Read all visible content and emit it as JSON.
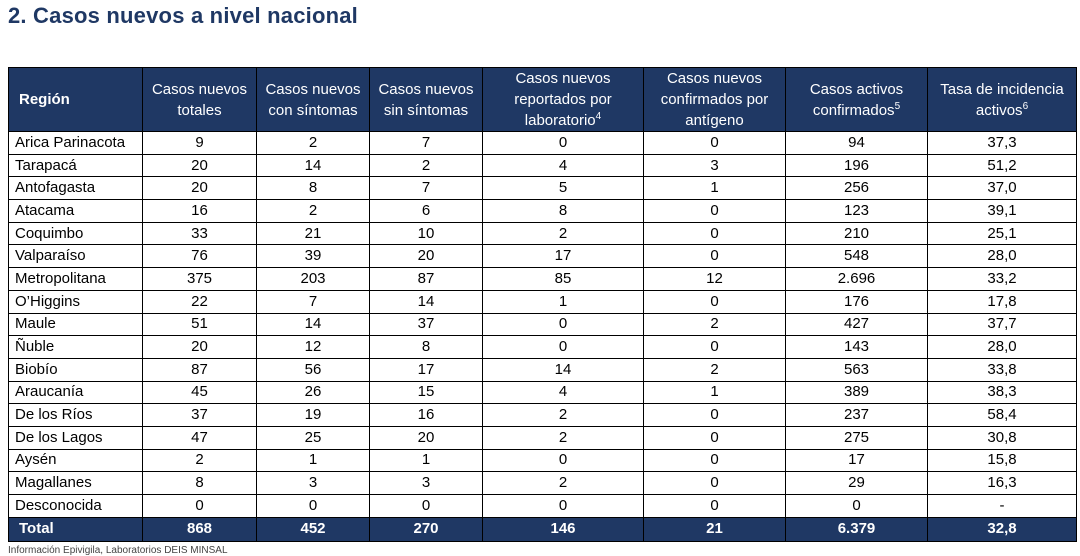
{
  "title": "2. Casos nuevos a nivel nacional",
  "table": {
    "headers": [
      {
        "text": "Región",
        "sup": ""
      },
      {
        "text": "Casos nuevos totales",
        "sup": ""
      },
      {
        "text": "Casos nuevos con síntomas",
        "sup": ""
      },
      {
        "text": "Casos nuevos sin síntomas",
        "sup": ""
      },
      {
        "text": "Casos nuevos reportados por laboratorio",
        "sup": "4"
      },
      {
        "text": "Casos nuevos confirmados por antígeno",
        "sup": ""
      },
      {
        "text": "Casos activos confirmados",
        "sup": "5"
      },
      {
        "text": "Tasa de incidencia activos",
        "sup": "6"
      }
    ],
    "rows": [
      [
        "Arica Parinacota",
        "9",
        "2",
        "7",
        "0",
        "0",
        "94",
        "37,3"
      ],
      [
        "Tarapacá",
        "20",
        "14",
        "2",
        "4",
        "3",
        "196",
        "51,2"
      ],
      [
        "Antofagasta",
        "20",
        "8",
        "7",
        "5",
        "1",
        "256",
        "37,0"
      ],
      [
        "Atacama",
        "16",
        "2",
        "6",
        "8",
        "0",
        "123",
        "39,1"
      ],
      [
        "Coquimbo",
        "33",
        "21",
        "10",
        "2",
        "0",
        "210",
        "25,1"
      ],
      [
        "Valparaíso",
        "76",
        "39",
        "20",
        "17",
        "0",
        "548",
        "28,0"
      ],
      [
        "Metropolitana",
        "375",
        "203",
        "87",
        "85",
        "12",
        "2.696",
        "33,2"
      ],
      [
        "O’Higgins",
        "22",
        "7",
        "14",
        "1",
        "0",
        "176",
        "17,8"
      ],
      [
        "Maule",
        "51",
        "14",
        "37",
        "0",
        "2",
        "427",
        "37,7"
      ],
      [
        "Ñuble",
        "20",
        "12",
        "8",
        "0",
        "0",
        "143",
        "28,0"
      ],
      [
        "Biobío",
        "87",
        "56",
        "17",
        "14",
        "2",
        "563",
        "33,8"
      ],
      [
        "Araucanía",
        "45",
        "26",
        "15",
        "4",
        "1",
        "389",
        "38,3"
      ],
      [
        "De los Ríos",
        "37",
        "19",
        "16",
        "2",
        "0",
        "237",
        "58,4"
      ],
      [
        "De los Lagos",
        "47",
        "25",
        "20",
        "2",
        "0",
        "275",
        "30,8"
      ],
      [
        "Aysén",
        "2",
        "1",
        "1",
        "0",
        "0",
        "17",
        "15,8"
      ],
      [
        "Magallanes",
        "8",
        "3",
        "3",
        "2",
        "0",
        "29",
        "16,3"
      ],
      [
        "Desconocida",
        "0",
        "0",
        "0",
        "0",
        "0",
        "0",
        "-"
      ]
    ],
    "total": [
      "Total",
      "868",
      "452",
      "270",
      "146",
      "21",
      "6.379",
      "32,8"
    ]
  },
  "footnote": "Información Epivigila, Laboratorios DEIS MINSAL"
}
